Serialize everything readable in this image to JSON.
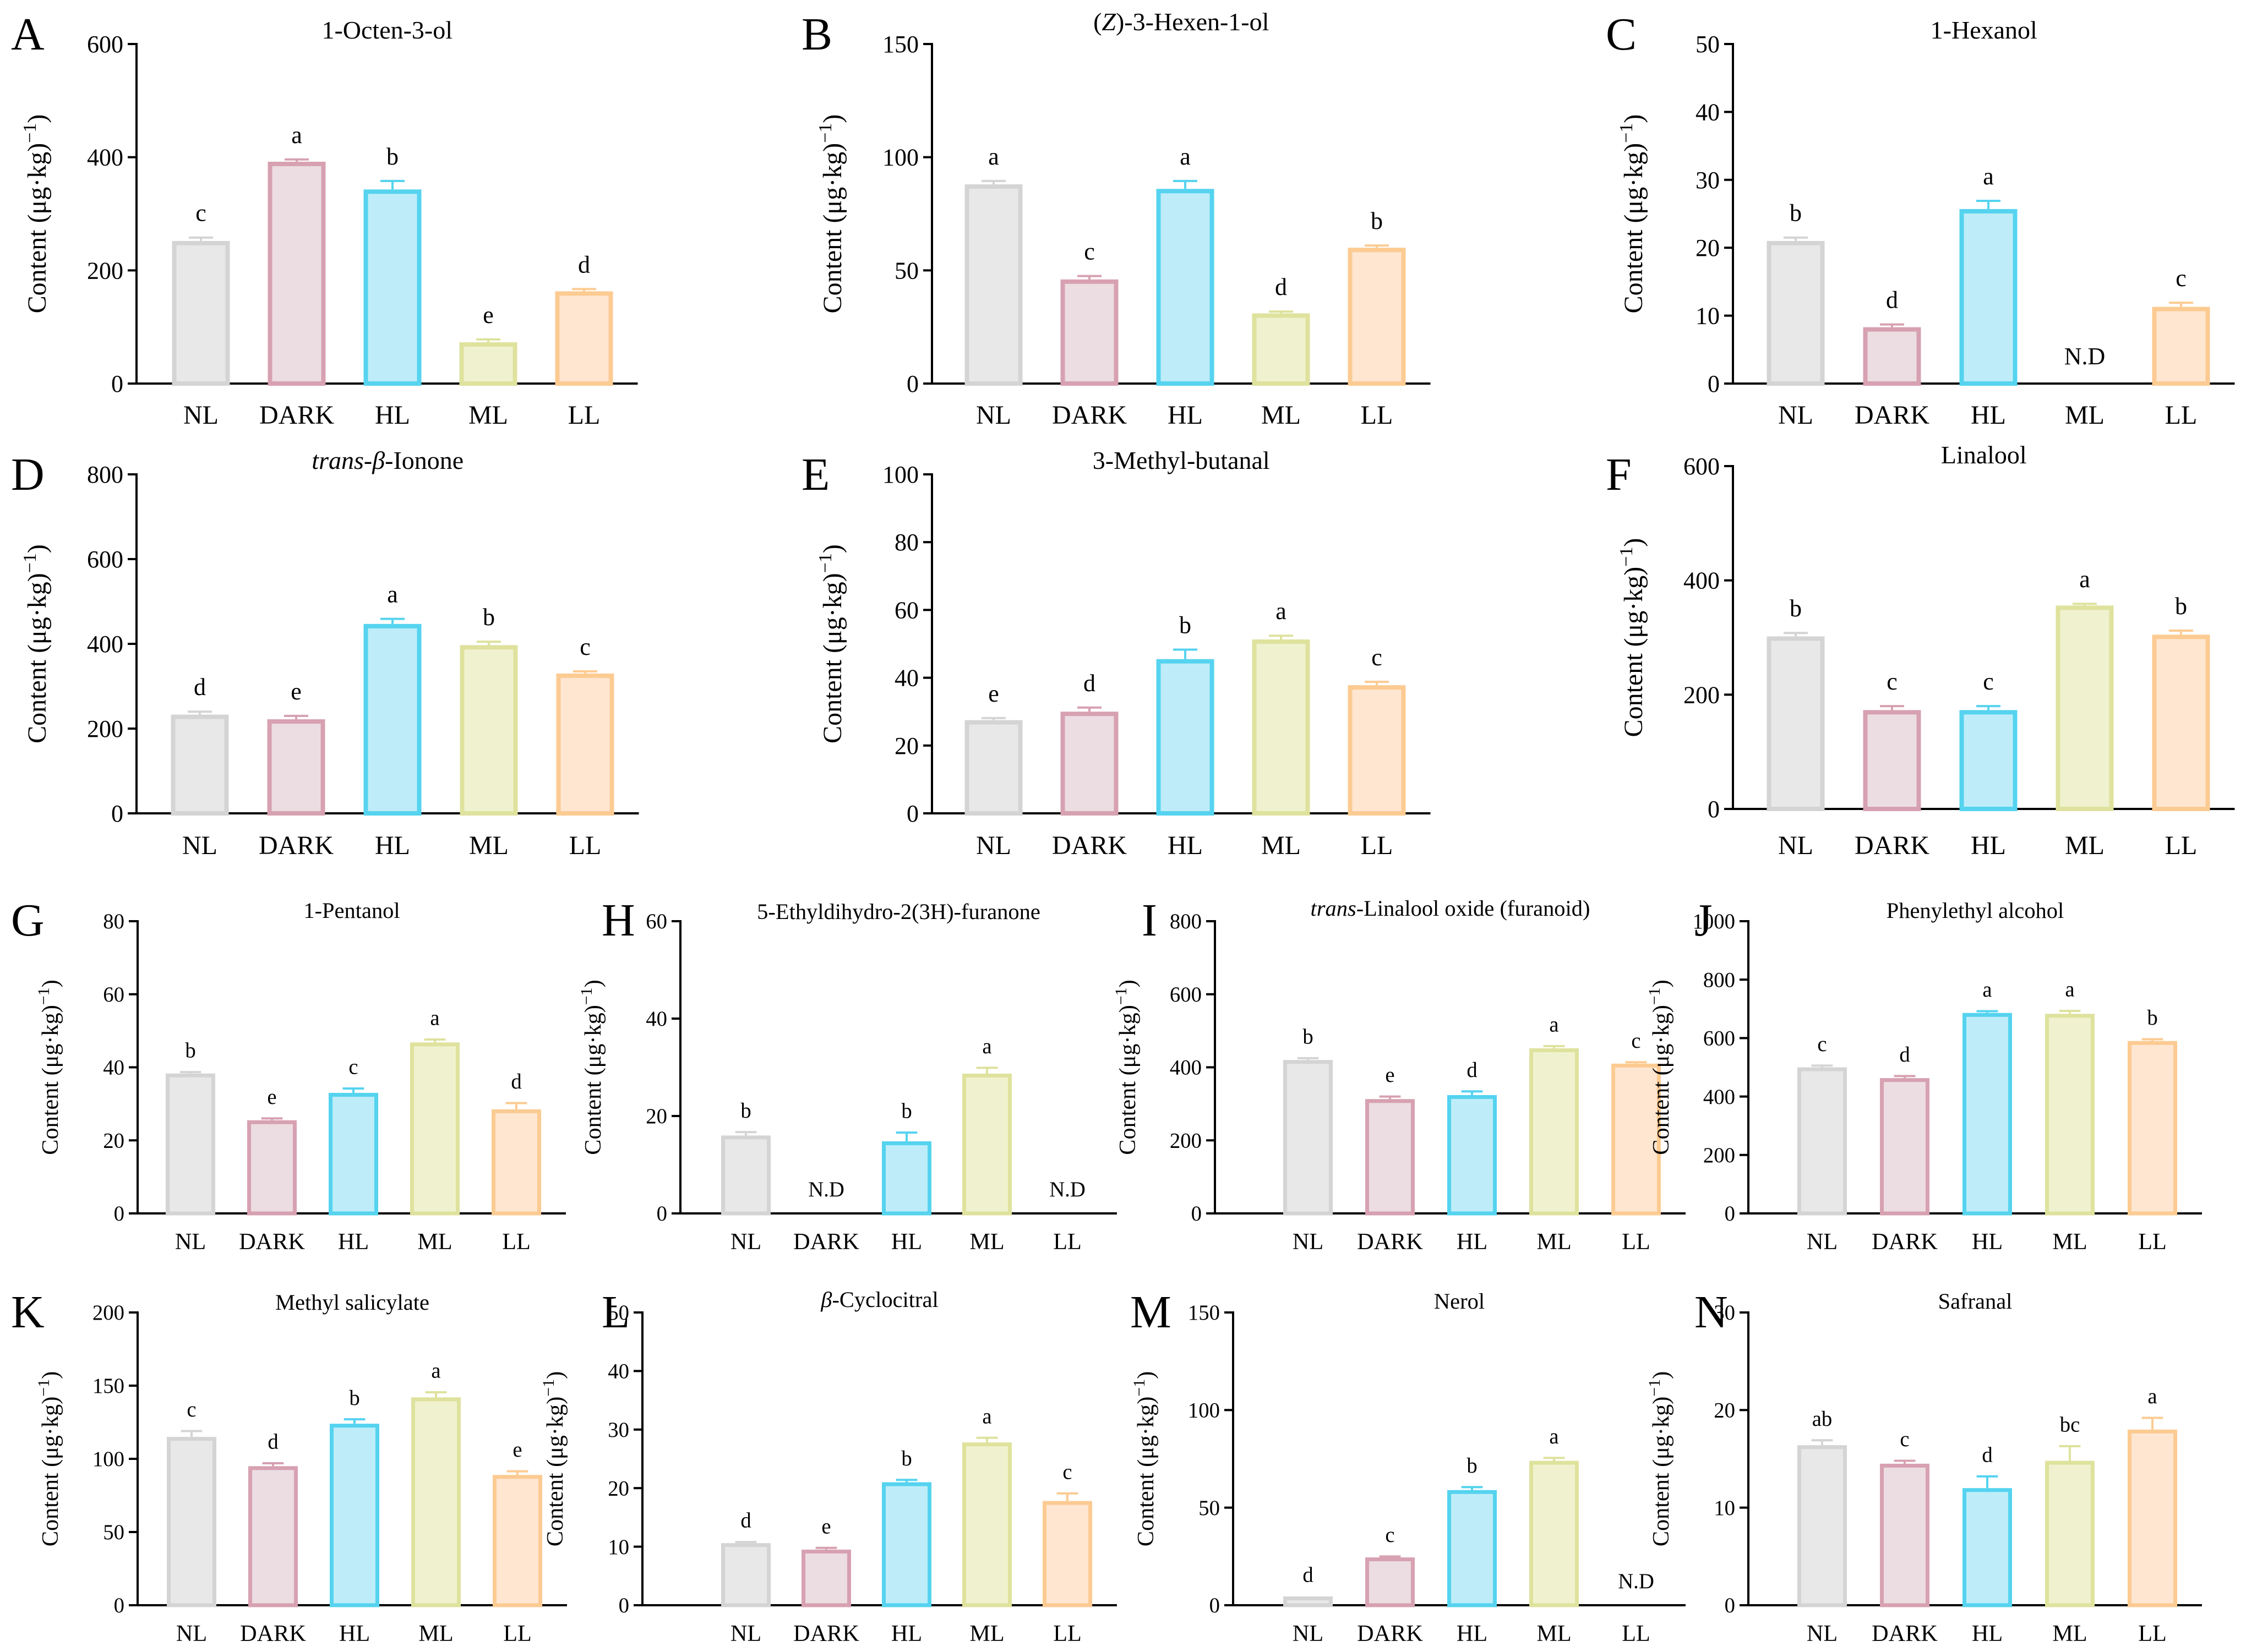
{
  "chart_data": [
    {
      "panel": "A",
      "type": "bar",
      "title": "1-Octen-3-ol",
      "ylabel": "Content (μg·kg⁻¹)",
      "ylim": [
        0,
        600
      ],
      "yticks": [
        0,
        200,
        400,
        600
      ],
      "categories": [
        "NL",
        "DARK",
        "HL",
        "ML",
        "LL"
      ],
      "values": [
        252,
        392,
        343,
        73,
        163
      ],
      "errors": [
        6,
        4,
        15,
        5,
        4
      ],
      "labels": [
        "c",
        "a",
        "b",
        "e",
        "d"
      ]
    },
    {
      "panel": "B",
      "type": "bar",
      "title": "(Z)-3-Hexen-1-ol",
      "ylabel": "Content (μg·kg⁻¹)",
      "ylim": [
        0,
        150
      ],
      "yticks": [
        0,
        50,
        100,
        150
      ],
      "categories": [
        "NL",
        "DARK",
        "HL",
        "ML",
        "LL"
      ],
      "values": [
        88,
        46,
        86,
        31,
        60
      ],
      "errors": [
        1.5,
        1.5,
        3.5,
        0.8,
        1
      ],
      "labels": [
        "a",
        "c",
        "a",
        "d",
        "b"
      ]
    },
    {
      "panel": "C",
      "type": "bar",
      "title": "1-Hexanol",
      "ylabel": "Content (μg·kg⁻¹)",
      "ylim": [
        0,
        50
      ],
      "yticks": [
        0,
        10,
        20,
        30,
        40,
        50
      ],
      "categories": [
        "NL",
        "DARK",
        "HL",
        "ML",
        "LL"
      ],
      "values": [
        21,
        8.3,
        25.7,
        null,
        11.3
      ],
      "errors": [
        0.5,
        0.4,
        1.2,
        0,
        0.6
      ],
      "labels": [
        "b",
        "d",
        "a",
        "N.D",
        "c"
      ]
    },
    {
      "panel": "D",
      "type": "bar",
      "title": "trans-β-Ionone",
      "ylabel": "Content (μg·kg⁻¹)",
      "ylim": [
        0,
        800
      ],
      "yticks": [
        0,
        200,
        400,
        600,
        800
      ],
      "categories": [
        "NL",
        "DARK",
        "HL",
        "ML",
        "LL"
      ],
      "values": [
        233,
        222,
        447,
        397,
        330
      ],
      "errors": [
        7,
        8,
        12,
        8,
        5
      ],
      "labels": [
        "d",
        "e",
        "a",
        "b",
        "c"
      ]
    },
    {
      "panel": "E",
      "type": "bar",
      "title": "3-Methyl-butanal",
      "ylabel": "Content (μg·kg⁻¹)",
      "ylim": [
        0,
        100
      ],
      "yticks": [
        0,
        20,
        40,
        60,
        80,
        100
      ],
      "categories": [
        "NL",
        "DARK",
        "HL",
        "ML",
        "LL"
      ],
      "values": [
        27.5,
        30,
        45.5,
        51.3,
        37.8
      ],
      "errors": [
        0.6,
        1.2,
        2.8,
        1.1,
        1
      ],
      "labels": [
        "e",
        "d",
        "b",
        "a",
        "c"
      ]
    },
    {
      "panel": "F",
      "type": "bar",
      "title": "Linalool",
      "ylabel": "Content (μg·kg⁻¹)",
      "ylim": [
        0,
        600
      ],
      "yticks": [
        0,
        200,
        400,
        600
      ],
      "categories": [
        "NL",
        "DARK",
        "HL",
        "ML",
        "LL"
      ],
      "values": [
        302,
        173,
        173,
        356,
        305
      ],
      "errors": [
        6,
        7,
        7,
        3,
        7
      ],
      "labels": [
        "b",
        "c",
        "c",
        "a",
        "b"
      ]
    },
    {
      "panel": "G",
      "type": "bar",
      "title": "1-Pentanol",
      "ylabel": "Content (μg·kg⁻¹)",
      "ylim": [
        0,
        80
      ],
      "yticks": [
        0,
        20,
        40,
        60,
        80
      ],
      "categories": [
        "NL",
        "DARK",
        "HL",
        "ML",
        "LL"
      ],
      "values": [
        38.3,
        25.5,
        33,
        46.8,
        28.5
      ],
      "errors": [
        0.4,
        0.5,
        1.2,
        0.8,
        1.7
      ],
      "labels": [
        "b",
        "e",
        "c",
        "a",
        "d"
      ]
    },
    {
      "panel": "H",
      "type": "bar",
      "title": "5-Ethyldihydro-2(3H)-furanone",
      "ylabel": "Content (μg·kg⁻¹)",
      "ylim": [
        0,
        60
      ],
      "yticks": [
        0,
        20,
        40,
        60
      ],
      "categories": [
        "NL",
        "DARK",
        "HL",
        "ML",
        "LL"
      ],
      "values": [
        16,
        null,
        14.8,
        28.7,
        null
      ],
      "errors": [
        0.7,
        0,
        1.8,
        1.2,
        0
      ],
      "labels": [
        "b",
        "N.D",
        "b",
        "a",
        "N.D"
      ]
    },
    {
      "panel": "I",
      "type": "bar",
      "title": "trans-Linalool oxide (furanoid)",
      "ylabel": "Content (μg·kg⁻¹)",
      "ylim": [
        0,
        800
      ],
      "yticks": [
        0,
        200,
        400,
        600,
        800
      ],
      "categories": [
        "NL",
        "DARK",
        "HL",
        "ML",
        "LL"
      ],
      "values": [
        420,
        313,
        324,
        452,
        410
      ],
      "errors": [
        5,
        7,
        10,
        6,
        4
      ],
      "labels": [
        "b",
        "e",
        "d",
        "a",
        "c"
      ]
    },
    {
      "panel": "J",
      "type": "bar",
      "title": "Phenylethyl alcohol",
      "ylabel": "Content (μg·kg⁻¹)",
      "ylim": [
        0,
        1000
      ],
      "yticks": [
        0,
        200,
        400,
        600,
        800,
        1000
      ],
      "categories": [
        "NL",
        "DARK",
        "HL",
        "ML",
        "LL"
      ],
      "values": [
        500,
        463,
        686,
        683,
        590
      ],
      "errors": [
        6,
        7,
        6,
        10,
        6
      ],
      "labels": [
        "c",
        "d",
        "a",
        "a",
        "b"
      ]
    },
    {
      "panel": "K",
      "type": "bar",
      "title": "Methyl salicylate",
      "ylabel": "Content (μg·kg⁻¹)",
      "ylim": [
        0,
        200
      ],
      "yticks": [
        0,
        50,
        100,
        150,
        200
      ],
      "categories": [
        "NL",
        "DARK",
        "HL",
        "ML",
        "LL"
      ],
      "values": [
        115,
        95,
        124,
        142,
        89
      ],
      "errors": [
        4,
        2,
        3,
        3.5,
        2.5
      ],
      "labels": [
        "c",
        "d",
        "b",
        "a",
        "e"
      ]
    },
    {
      "panel": "L",
      "type": "bar",
      "title": "β-Cyclocitral",
      "ylabel": "Content (μg·kg⁻¹)",
      "ylim": [
        0,
        50
      ],
      "yticks": [
        0,
        10,
        20,
        30,
        40,
        50
      ],
      "categories": [
        "NL",
        "DARK",
        "HL",
        "ML",
        "LL"
      ],
      "values": [
        10.6,
        9.5,
        21,
        27.8,
        17.8
      ],
      "errors": [
        0.2,
        0.3,
        0.4,
        0.8,
        1.3
      ],
      "labels": [
        "d",
        "e",
        "b",
        "a",
        "c"
      ]
    },
    {
      "panel": "M",
      "type": "bar",
      "title": "Nerol",
      "ylabel": "Content (μg·kg⁻¹)",
      "ylim": [
        0,
        150
      ],
      "yticks": [
        0,
        50,
        100,
        150
      ],
      "categories": [
        "NL",
        "DARK",
        "HL",
        "ML",
        "LL"
      ],
      "values": [
        4.5,
        24.5,
        59,
        74,
        null
      ],
      "errors": [
        0,
        0.5,
        1.5,
        1.5,
        0
      ],
      "labels": [
        "d",
        "c",
        "b",
        "a",
        "N.D"
      ]
    },
    {
      "panel": "N",
      "type": "bar",
      "title": "Safranal",
      "ylabel": "Content (μg·kg⁻¹)",
      "ylim": [
        0,
        30
      ],
      "yticks": [
        0,
        10,
        20,
        30
      ],
      "categories": [
        "NL",
        "DARK",
        "HL",
        "ML",
        "LL"
      ],
      "values": [
        16.4,
        14.5,
        12,
        14.8,
        18
      ],
      "errors": [
        0.5,
        0.3,
        1.2,
        1.5,
        1.2
      ],
      "labels": [
        "ab",
        "c",
        "d",
        "bc",
        "a"
      ]
    }
  ],
  "colors": {
    "NL": {
      "stroke": "#D4D4D4",
      "fill": "#E8E8E8"
    },
    "DARK": {
      "stroke": "#D7A1B1",
      "fill": "#ECDDE3"
    },
    "HL": {
      "stroke": "#55D3EF",
      "fill": "#BEEDF9"
    },
    "ML": {
      "stroke": "#DEE29D",
      "fill": "#F0F2CF"
    },
    "LL": {
      "stroke": "#FCCB92",
      "fill": "#FEE6D1"
    }
  }
}
